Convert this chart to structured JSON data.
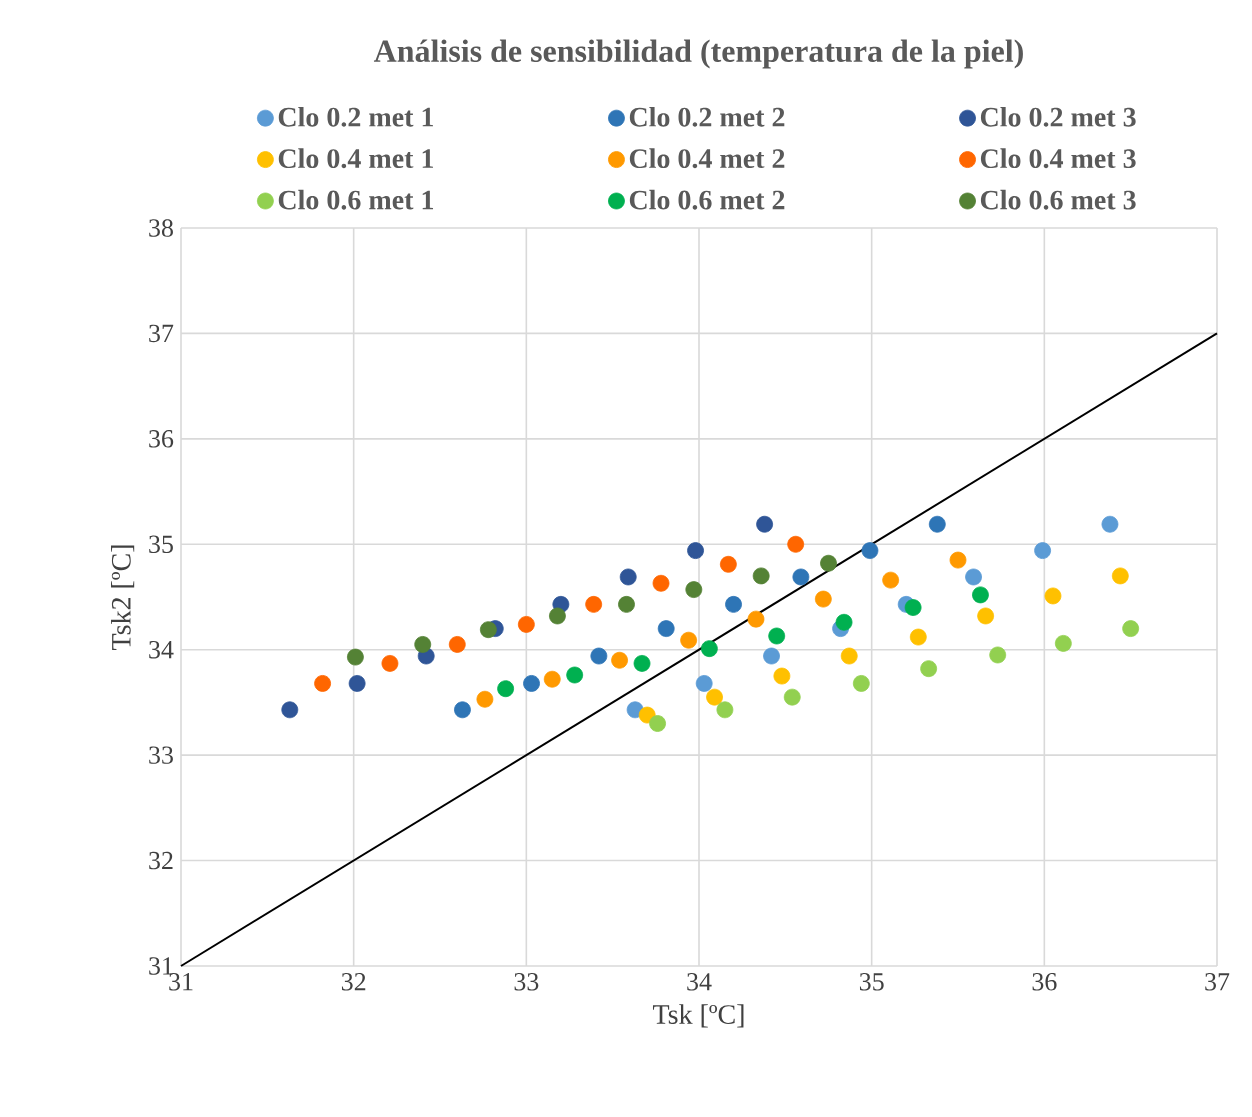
{
  "chart_data": {
    "type": "scatter",
    "title": "Análisis de sensibilidad (temperatura de la piel)",
    "xlabel": "Tsk [ºC]",
    "ylabel": "Tsk2 [ºC]",
    "xlim": [
      31,
      37
    ],
    "ylim": [
      31,
      38
    ],
    "xticks": [
      31,
      32,
      33,
      34,
      35,
      36,
      37
    ],
    "yticks": [
      31,
      32,
      33,
      34,
      35,
      36,
      37,
      38
    ],
    "grid": true,
    "legend": "top",
    "marker": "circle",
    "series": [
      {
        "name": "Clo 0.2 met 1",
        "color": "#5b9bd5",
        "x": [
          33.63,
          34.03,
          34.42,
          34.82,
          35.2,
          35.59,
          35.99,
          36.38
        ],
        "values": [
          33.43,
          33.68,
          33.94,
          34.2,
          34.43,
          34.69,
          34.94,
          35.19
        ]
      },
      {
        "name": "Clo 0.2 met 2",
        "color": "#2e75b6",
        "x": [
          32.63,
          33.03,
          33.42,
          33.81,
          34.2,
          34.59,
          34.99,
          35.38
        ],
        "values": [
          33.43,
          33.68,
          33.94,
          34.2,
          34.43,
          34.69,
          34.94,
          35.19
        ]
      },
      {
        "name": "Clo 0.2 met 3",
        "color": "#2f5597",
        "x": [
          31.63,
          32.02,
          32.42,
          32.82,
          33.2,
          33.59,
          33.98,
          34.38
        ],
        "values": [
          33.43,
          33.68,
          33.94,
          34.2,
          34.43,
          34.69,
          34.94,
          35.19
        ]
      },
      {
        "name": "Clo 0.4 met 1",
        "color": "#ffc000",
        "x": [
          33.7,
          34.09,
          34.48,
          34.87,
          35.27,
          35.66,
          36.05,
          36.44
        ],
        "values": [
          33.38,
          33.55,
          33.75,
          33.94,
          34.12,
          34.32,
          34.51,
          34.7
        ]
      },
      {
        "name": "Clo 0.4 met 2",
        "color": "#ff9900",
        "x": [
          32.76,
          33.15,
          33.54,
          33.94,
          34.33,
          34.72,
          35.11,
          35.5
        ],
        "values": [
          33.53,
          33.72,
          33.9,
          34.09,
          34.29,
          34.48,
          34.66,
          34.85
        ]
      },
      {
        "name": "Clo 0.4 met 3",
        "color": "#ff6600",
        "x": [
          31.82,
          32.21,
          32.6,
          33.0,
          33.39,
          33.78,
          34.17,
          34.56
        ],
        "values": [
          33.68,
          33.87,
          34.05,
          34.24,
          34.43,
          34.63,
          34.81,
          35.0
        ]
      },
      {
        "name": "Clo 0.6 met 1",
        "color": "#92d050",
        "x": [
          33.76,
          34.15,
          34.54,
          34.94,
          35.33,
          35.73,
          36.11,
          36.5
        ],
        "values": [
          33.3,
          33.43,
          33.55,
          33.68,
          33.82,
          33.95,
          34.06,
          34.2
        ]
      },
      {
        "name": "Clo 0.6 met 2",
        "color": "#00b050",
        "x": [
          32.88,
          33.28,
          33.67,
          34.06,
          34.45,
          34.84,
          35.24,
          35.63
        ],
        "values": [
          33.63,
          33.76,
          33.87,
          34.01,
          34.13,
          34.26,
          34.4,
          34.52
        ]
      },
      {
        "name": "Clo 0.6 met 3",
        "color": "#548235",
        "x": [
          32.01,
          32.4,
          32.78,
          33.18,
          33.58,
          33.97,
          34.36,
          34.75
        ],
        "values": [
          33.93,
          34.05,
          34.19,
          34.32,
          34.43,
          34.57,
          34.7,
          34.82
        ]
      },
      {
        "type": "line",
        "color": "#000000",
        "line_style": "solid",
        "marker": "none",
        "x": [
          31,
          37
        ],
        "values": [
          31,
          37
        ]
      }
    ]
  }
}
